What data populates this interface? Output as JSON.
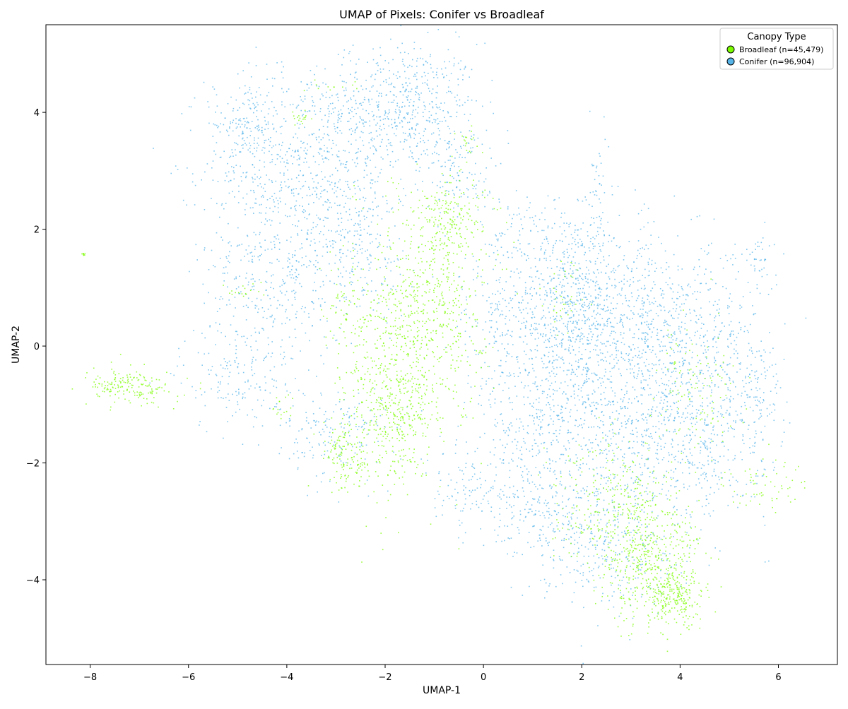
{
  "chart_data": {
    "type": "scatter",
    "title": "UMAP of Pixels: Conifer vs Broadleaf",
    "xlabel": "UMAP-1",
    "ylabel": "UMAP-2",
    "xlim": [
      -8.9,
      7.2
    ],
    "ylim": [
      -5.45,
      5.5
    ],
    "xticks": [
      -8,
      -6,
      -4,
      -2,
      0,
      2,
      4,
      6
    ],
    "yticks": [
      -4,
      -2,
      0,
      2,
      4
    ],
    "xtick_labels": [
      "−8",
      "−6",
      "−4",
      "−2",
      "0",
      "2",
      "4",
      "6"
    ],
    "ytick_labels": [
      "−4",
      "−2",
      "0",
      "2",
      "4"
    ],
    "grid": false,
    "legend": {
      "title": "Canopy Type",
      "placement": "top-right",
      "entries": [
        "Broadleaf (n=45,479)",
        "Conifer (n=96,904)"
      ]
    },
    "series": [
      {
        "name": "Broadleaf (n=45,479)",
        "color": "#7CFC00",
        "count": 45479,
        "clusters": [
          {
            "cx": -7.2,
            "cy": -0.7,
            "sx": 0.45,
            "sy": 0.15,
            "weight": 3
          },
          {
            "cx": -8.15,
            "cy": 1.58,
            "sx": 0.03,
            "sy": 0.02,
            "weight": 0.1
          },
          {
            "cx": -2.0,
            "cy": -0.6,
            "sx": 0.55,
            "sy": 1.0,
            "weight": 8
          },
          {
            "cx": -1.1,
            "cy": 0.8,
            "sx": 0.55,
            "sy": 0.9,
            "weight": 9
          },
          {
            "cx": -0.6,
            "cy": 2.2,
            "sx": 0.4,
            "sy": 0.35,
            "weight": 3
          },
          {
            "cx": -2.8,
            "cy": -1.9,
            "sx": 0.25,
            "sy": 0.3,
            "weight": 2
          },
          {
            "cx": -1.6,
            "cy": -1.2,
            "sx": 0.4,
            "sy": 0.4,
            "weight": 3
          },
          {
            "cx": 3.3,
            "cy": -3.6,
            "sx": 0.55,
            "sy": 0.55,
            "weight": 8
          },
          {
            "cx": 3.9,
            "cy": -4.3,
            "sx": 0.3,
            "sy": 0.25,
            "weight": 4
          },
          {
            "cx": 2.6,
            "cy": -2.6,
            "sx": 0.6,
            "sy": 0.5,
            "weight": 4
          },
          {
            "cx": 5.8,
            "cy": -2.3,
            "sx": 0.45,
            "sy": 0.2,
            "weight": 1
          },
          {
            "cx": 4.3,
            "cy": -0.8,
            "sx": 0.4,
            "sy": 0.6,
            "weight": 2
          },
          {
            "cx": -3.7,
            "cy": 3.9,
            "sx": 0.1,
            "sy": 0.08,
            "weight": 0.3
          },
          {
            "cx": -0.3,
            "cy": 3.5,
            "sx": 0.12,
            "sy": 0.12,
            "weight": 0.3
          },
          {
            "cx": -3.2,
            "cy": 4.5,
            "sx": 0.3,
            "sy": 0.1,
            "weight": 0.2
          },
          {
            "cx": -4.1,
            "cy": -1.0,
            "sx": 0.12,
            "sy": 0.2,
            "weight": 0.3
          },
          {
            "cx": -4.9,
            "cy": 0.9,
            "sx": 0.25,
            "sy": 0.1,
            "weight": 0.3
          },
          {
            "cx": 1.7,
            "cy": 0.8,
            "sx": 0.25,
            "sy": 0.3,
            "weight": 0.6
          },
          {
            "cx": -2.9,
            "cy": 1.0,
            "sx": 0.2,
            "sy": 0.4,
            "weight": 0.5
          }
        ]
      },
      {
        "name": "Conifer (n=96,904)",
        "color": "#56B4E9",
        "count": 96904,
        "clusters": [
          {
            "cx": -1.6,
            "cy": 4.1,
            "sx": 0.75,
            "sy": 0.55,
            "weight": 7
          },
          {
            "cx": -3.6,
            "cy": 3.2,
            "sx": 1.0,
            "sy": 0.8,
            "weight": 8
          },
          {
            "cx": -4.8,
            "cy": 3.8,
            "sx": 0.35,
            "sy": 0.4,
            "weight": 2
          },
          {
            "cx": -4.3,
            "cy": 1.2,
            "sx": 0.7,
            "sy": 0.9,
            "weight": 5
          },
          {
            "cx": -5.0,
            "cy": -0.5,
            "sx": 0.6,
            "sy": 0.5,
            "weight": 2
          },
          {
            "cx": -3.0,
            "cy": -1.5,
            "sx": 0.5,
            "sy": 0.4,
            "weight": 2
          },
          {
            "cx": -2.6,
            "cy": 1.7,
            "sx": 0.6,
            "sy": 0.6,
            "weight": 3
          },
          {
            "cx": 1.8,
            "cy": 0.7,
            "sx": 0.7,
            "sy": 0.7,
            "weight": 8
          },
          {
            "cx": 3.5,
            "cy": 0.2,
            "sx": 1.0,
            "sy": 0.8,
            "weight": 11
          },
          {
            "cx": 1.5,
            "cy": -1.3,
            "sx": 0.9,
            "sy": 0.8,
            "weight": 8
          },
          {
            "cx": 4.0,
            "cy": -1.5,
            "sx": 0.9,
            "sy": 0.8,
            "weight": 8
          },
          {
            "cx": 5.5,
            "cy": -0.8,
            "sx": 0.3,
            "sy": 0.6,
            "weight": 1.5
          },
          {
            "cx": 5.6,
            "cy": 1.5,
            "sx": 0.2,
            "sy": 0.3,
            "weight": 0.6
          },
          {
            "cx": 2.5,
            "cy": -3.3,
            "sx": 0.7,
            "sy": 0.6,
            "weight": 4
          },
          {
            "cx": 1.2,
            "cy": -3.0,
            "sx": 0.6,
            "sy": 0.4,
            "weight": 2
          },
          {
            "cx": -0.2,
            "cy": -2.4,
            "sx": 0.6,
            "sy": 0.4,
            "weight": 1.5
          },
          {
            "cx": 0.3,
            "cy": 0.5,
            "sx": 0.4,
            "sy": 0.6,
            "weight": 2
          },
          {
            "cx": 2.3,
            "cy": 2.5,
            "sx": 0.1,
            "sy": 0.6,
            "weight": 0.6
          },
          {
            "cx": 1.2,
            "cy": 2.0,
            "sx": 0.6,
            "sy": 0.35,
            "weight": 1.5
          },
          {
            "cx": -0.5,
            "cy": 3.0,
            "sx": 0.4,
            "sy": 0.4,
            "weight": 1.5
          }
        ]
      }
    ]
  }
}
